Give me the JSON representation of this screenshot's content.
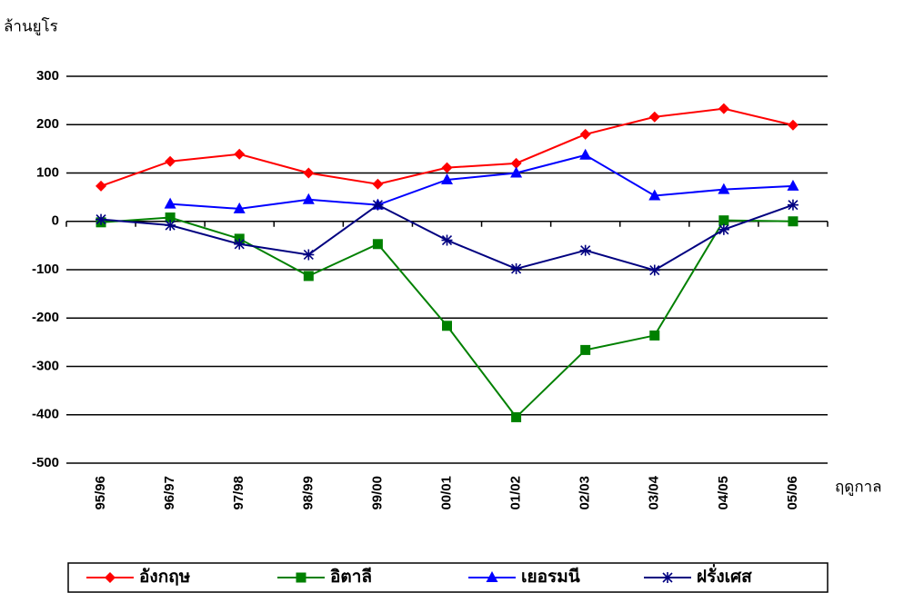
{
  "chart_data": {
    "type": "line",
    "y_label": "ล้านยูโร",
    "x_label": "ฤดูกาล",
    "categories": [
      "95/96",
      "96/97",
      "97/98",
      "98/99",
      "99/00",
      "00/01",
      "01/02",
      "02/03",
      "03/04",
      "04/05",
      "05/06"
    ],
    "series": [
      {
        "name": "อังกฤษ",
        "color": "#ff0000",
        "marker": "diamond",
        "values": [
          73,
          124,
          139,
          100,
          77,
          111,
          120,
          180,
          216,
          233,
          199
        ]
      },
      {
        "name": "อิตาลี",
        "color": "#008000",
        "marker": "square",
        "values": [
          -2,
          8,
          -36,
          -113,
          -47,
          -216,
          -405,
          -266,
          -236,
          2,
          0
        ]
      },
      {
        "name": "เยอรมนี",
        "color": "#0000ff",
        "marker": "triangle",
        "values": [
          null,
          36,
          26,
          45,
          34,
          86,
          100,
          137,
          53,
          66,
          73
        ]
      },
      {
        "name": "ฝรั่งเศส",
        "color": "#000080",
        "marker": "star",
        "values": [
          4,
          -8,
          -47,
          -69,
          34,
          -39,
          -98,
          -60,
          -101,
          -17,
          34
        ]
      }
    ],
    "ylim": [
      -500,
      300
    ],
    "yticks": [
      -500,
      -400,
      -300,
      -200,
      -100,
      0,
      100,
      200,
      300
    ],
    "grid": true,
    "legend": "bottom"
  }
}
